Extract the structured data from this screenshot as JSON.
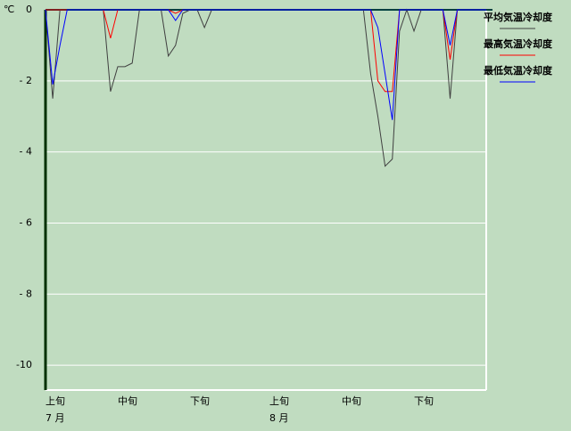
{
  "chart_data": {
    "type": "line",
    "unit_label": "℃",
    "categories": [
      "上旬",
      null,
      null,
      null,
      null,
      null,
      null,
      null,
      null,
      null,
      "中旬",
      null,
      null,
      null,
      null,
      null,
      null,
      null,
      null,
      null,
      "下旬",
      null,
      null,
      null,
      null,
      null,
      null,
      null,
      null,
      null,
      null,
      "上旬",
      null,
      null,
      null,
      null,
      null,
      null,
      null,
      null,
      null,
      "中旬",
      null,
      null,
      null,
      null,
      null,
      null,
      null,
      null,
      null,
      "下旬",
      null,
      null,
      null,
      null,
      null,
      null,
      null,
      null,
      null,
      null
    ],
    "categories2": [
      "7 月",
      null,
      null,
      null,
      null,
      null,
      null,
      null,
      null,
      null,
      null,
      null,
      null,
      null,
      null,
      null,
      null,
      null,
      null,
      null,
      null,
      null,
      null,
      null,
      null,
      null,
      null,
      null,
      null,
      null,
      null,
      "8 月",
      null,
      null,
      null,
      null,
      null,
      null,
      null,
      null,
      null,
      null,
      null,
      null,
      null,
      null,
      null,
      null,
      null,
      null,
      null,
      null,
      null,
      null,
      null,
      null,
      null,
      null,
      null,
      null,
      null,
      null
    ],
    "series": [
      {
        "name": "平均気温冷却度",
        "color": "#404040",
        "values": [
          0,
          -2.5,
          0,
          0,
          0,
          0,
          0,
          0,
          0,
          -2.3,
          -1.6,
          -1.6,
          -1.5,
          0,
          0,
          0,
          0,
          -1.3,
          -1.0,
          -0.1,
          0,
          0,
          -0.5,
          0,
          0,
          0,
          0,
          0,
          0,
          0,
          0,
          0,
          0,
          0,
          0,
          0,
          0,
          0,
          0,
          0,
          0,
          0,
          0,
          0,
          0,
          -1.8,
          -3.0,
          -4.4,
          -4.2,
          -0.6,
          0,
          -0.6,
          0,
          0,
          0,
          0,
          -2.5,
          0,
          0,
          0,
          0,
          0
        ]
      },
      {
        "name": "最高気温冷却度",
        "color": "#ff0000",
        "values": [
          0,
          0,
          0,
          0,
          0,
          0,
          0,
          0,
          0,
          -0.8,
          0,
          0,
          0,
          0,
          0,
          0,
          0,
          0,
          -0.1,
          0,
          0,
          0,
          0,
          0,
          0,
          0,
          0,
          0,
          0,
          0,
          0,
          0,
          0,
          0,
          0,
          0,
          0,
          0,
          0,
          0,
          0,
          0,
          0,
          0,
          0,
          0,
          -2.0,
          -2.3,
          -2.3,
          0,
          0,
          0,
          0,
          0,
          0,
          0,
          -1.4,
          0,
          0,
          0,
          0,
          0
        ]
      },
      {
        "name": "最低気温冷却度",
        "color": "#0000ff",
        "values": [
          0,
          -2.1,
          -1.0,
          0,
          0,
          0,
          0,
          0,
          0,
          0,
          0,
          0,
          0,
          0,
          0,
          0,
          0,
          0,
          -0.3,
          0,
          0,
          0,
          0,
          0,
          0,
          0,
          0,
          0,
          0,
          0,
          0,
          0,
          0,
          0,
          0,
          0,
          0,
          0,
          0,
          0,
          0,
          0,
          0,
          0,
          0,
          0,
          -0.5,
          -1.8,
          -3.1,
          0,
          0,
          0,
          0,
          0,
          0,
          0,
          -1.0,
          0,
          0,
          0,
          0,
          0
        ]
      }
    ],
    "ylim": [
      -10.7,
      0
    ],
    "yticks": [
      0,
      {
        "value": -2,
        "label": "- 2"
      },
      {
        "value": -4,
        "label": "- 4"
      },
      {
        "value": -6,
        "label": "- 6"
      },
      {
        "value": -8,
        "label": "- 8"
      },
      {
        "value": -10,
        "label": "-10"
      }
    ],
    "grid": true
  }
}
